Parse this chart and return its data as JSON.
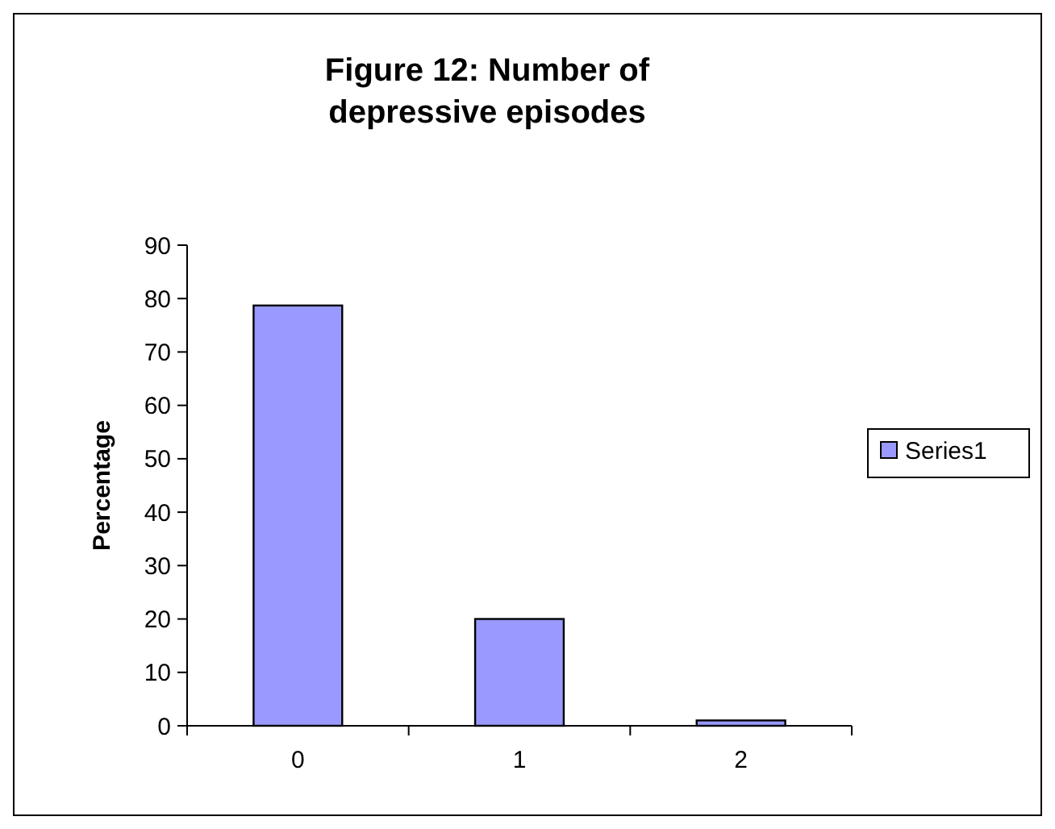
{
  "chart_data": {
    "type": "bar",
    "title": "Figure 12: Number of depressive episodes",
    "ylabel": "Percentage",
    "categories": [
      "0",
      "1",
      "2"
    ],
    "series": [
      {
        "name": "Series1",
        "color": "#9999ff",
        "values": [
          78.7,
          20,
          1
        ]
      }
    ],
    "ylim": [
      0,
      90
    ],
    "yticks": [
      0,
      10,
      20,
      30,
      40,
      50,
      60,
      70,
      80,
      90
    ],
    "legend": "right",
    "grid": false
  }
}
